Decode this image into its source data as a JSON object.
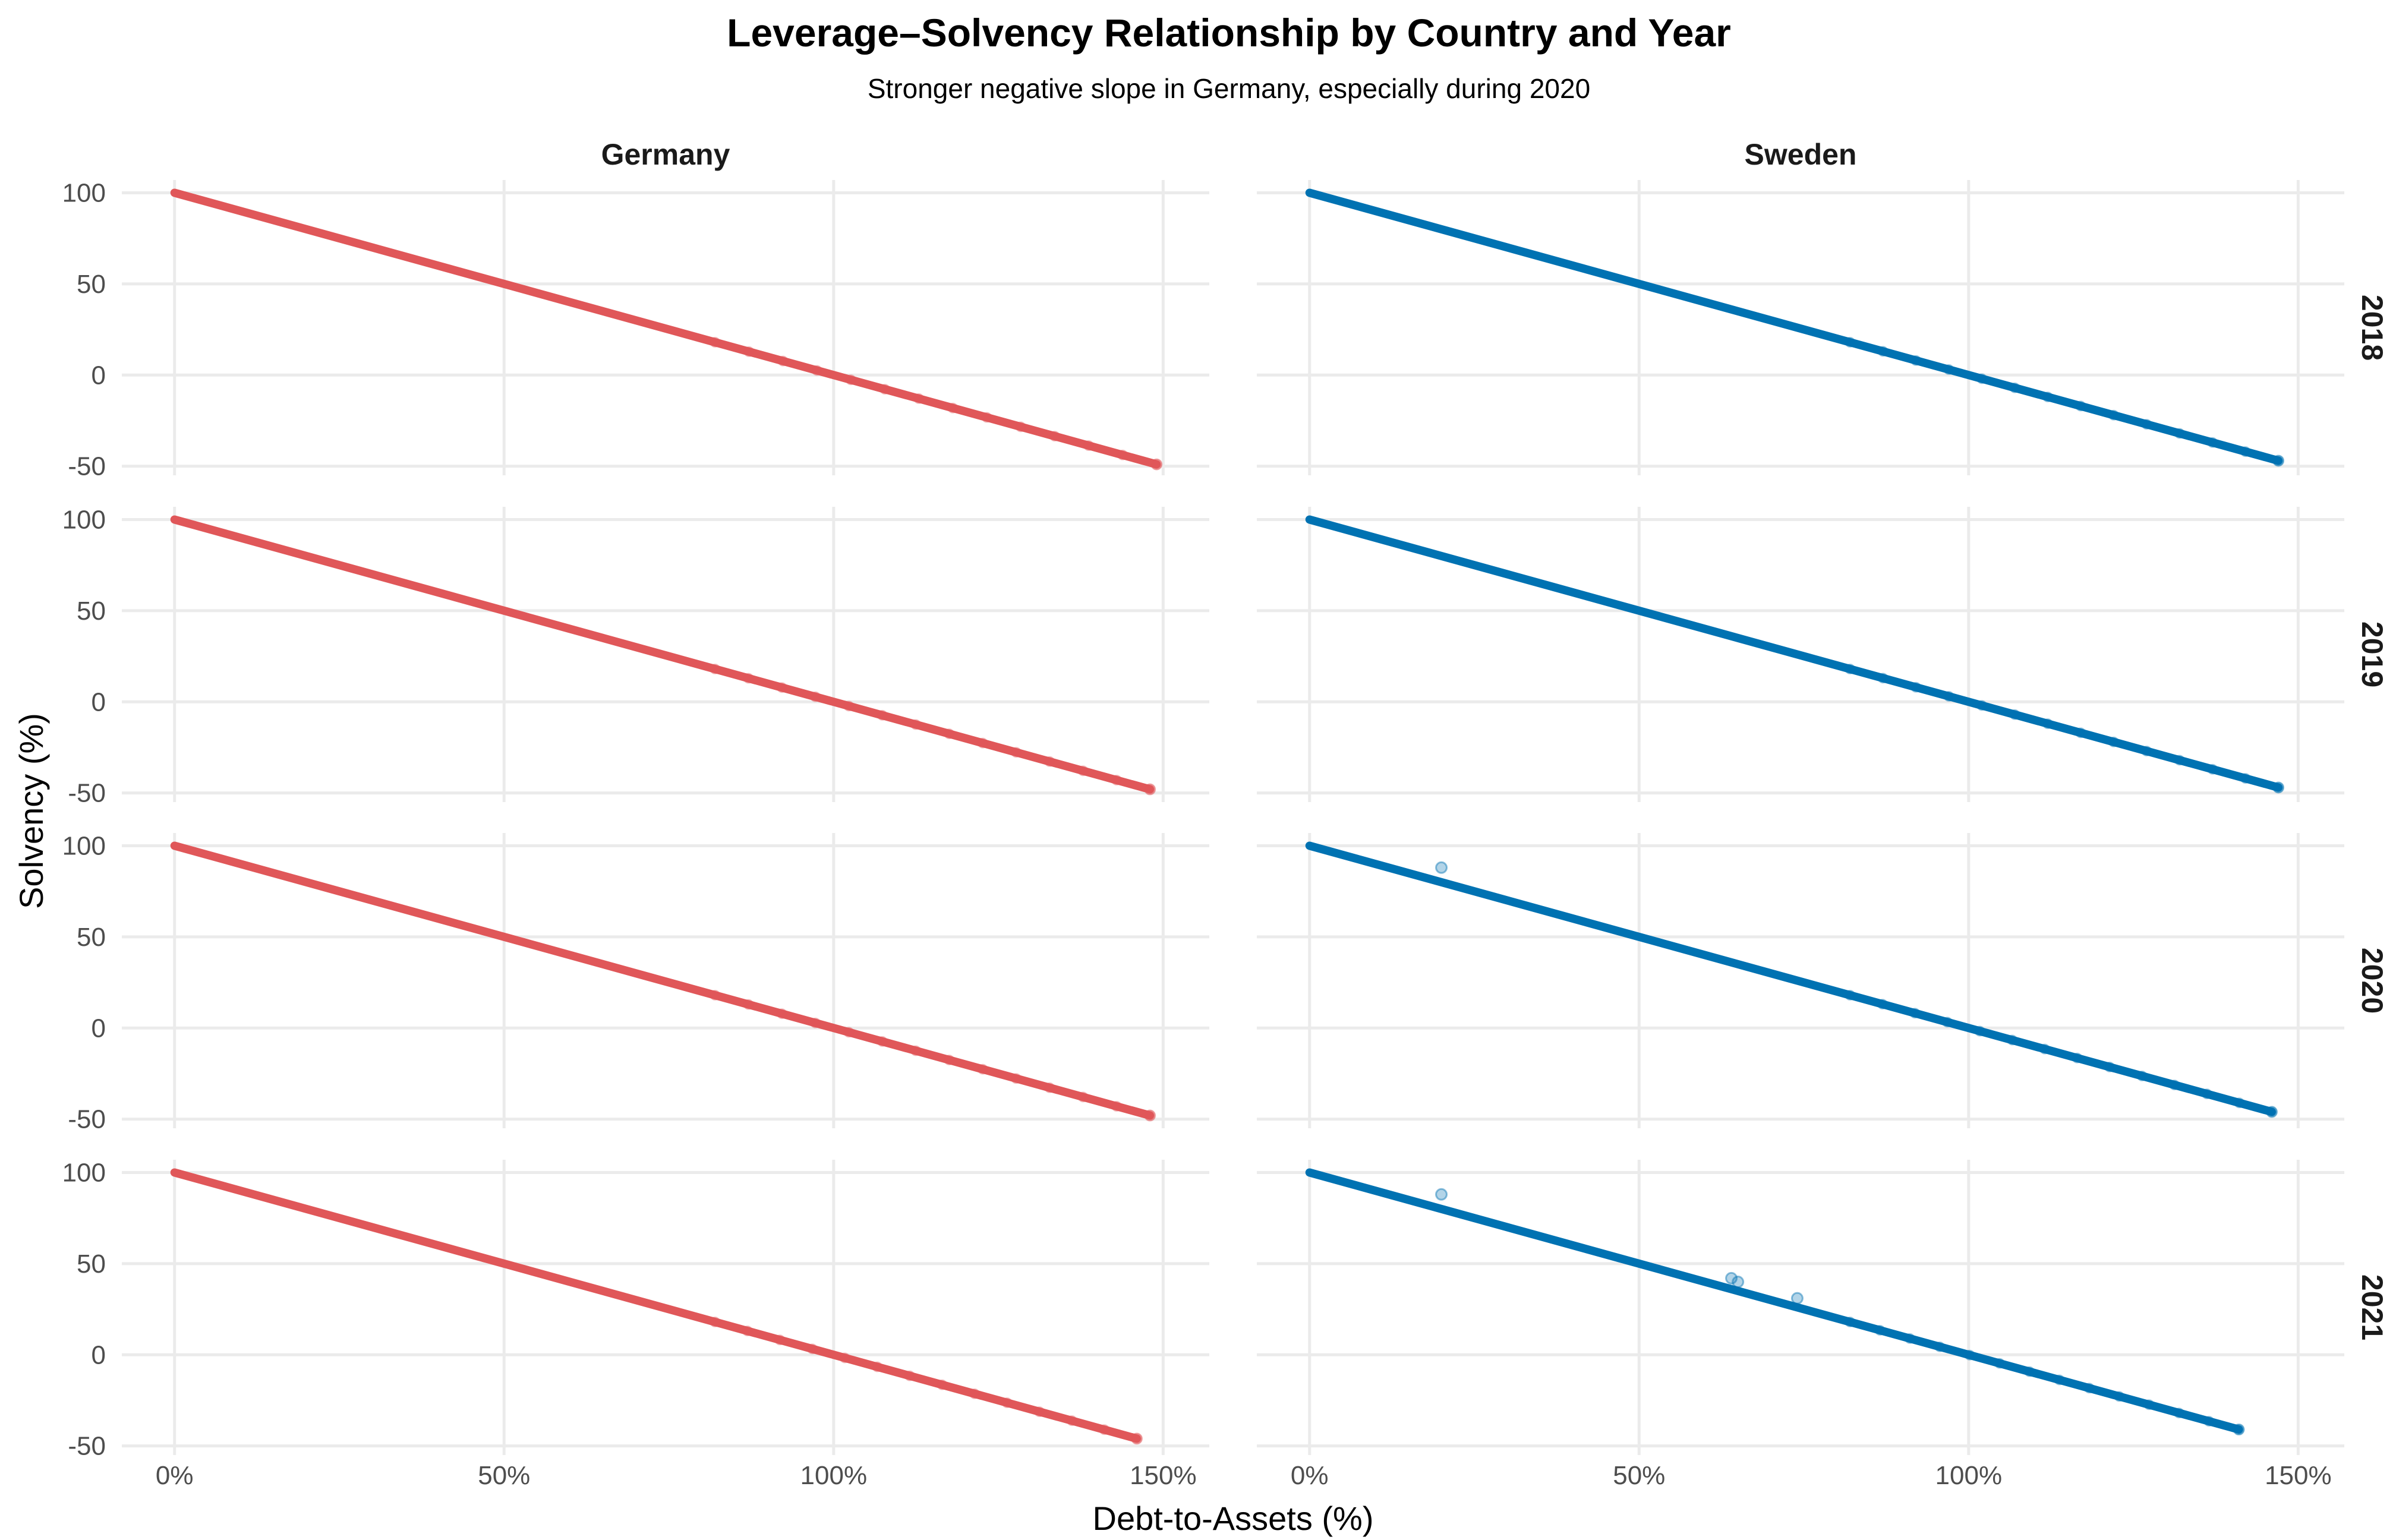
{
  "chart_data": {
    "type": "scatter",
    "title": "Leverage–Solvency Relationship by Country and Year",
    "subtitle": "Stronger negative slope in Germany, especially during 2020",
    "xlabel": "Debt-to-Assets (%)",
    "ylabel": "Solvency (%)",
    "facet_columns": [
      "Germany",
      "Sweden"
    ],
    "facet_rows": [
      "2018",
      "2019",
      "2020",
      "2021"
    ],
    "xlim": [
      -8,
      157
    ],
    "ylim": [
      -55,
      107
    ],
    "x_ticks": [
      0,
      50,
      100,
      150
    ],
    "x_tick_labels": [
      "0%",
      "50%",
      "100%",
      "150%"
    ],
    "y_ticks": [
      100,
      50,
      0,
      -50
    ],
    "y_tick_labels": [
      "100",
      "50",
      "0",
      "-50"
    ],
    "grid": true,
    "legend": "none",
    "colors": {
      "Germany": "#E05759",
      "Sweden": "#0072B2"
    },
    "relationship": "Solvency ≈ 100 − Debt-to-Assets",
    "panels": [
      {
        "country": "Germany",
        "year": "2018",
        "x_range": [
          0,
          149
        ],
        "line": [
          [
            0,
            100
          ],
          [
            149,
            -49
          ]
        ],
        "outliers": []
      },
      {
        "country": "Sweden",
        "year": "2018",
        "x_range": [
          0,
          147
        ],
        "line": [
          [
            0,
            100
          ],
          [
            147,
            -47
          ]
        ],
        "outliers": []
      },
      {
        "country": "Germany",
        "year": "2019",
        "x_range": [
          0,
          148
        ],
        "line": [
          [
            0,
            100
          ],
          [
            148,
            -48
          ]
        ],
        "outliers": []
      },
      {
        "country": "Sweden",
        "year": "2019",
        "x_range": [
          0,
          147
        ],
        "line": [
          [
            0,
            100
          ],
          [
            147,
            -47
          ]
        ],
        "outliers": []
      },
      {
        "country": "Germany",
        "year": "2020",
        "x_range": [
          0,
          148
        ],
        "line": [
          [
            0,
            100
          ],
          [
            148,
            -48
          ]
        ],
        "outliers": []
      },
      {
        "country": "Sweden",
        "year": "2020",
        "x_range": [
          0,
          146
        ],
        "line": [
          [
            0,
            100
          ],
          [
            146,
            -46
          ]
        ],
        "outliers": [
          [
            20,
            88
          ]
        ]
      },
      {
        "country": "Germany",
        "year": "2021",
        "x_range": [
          0,
          146
        ],
        "line": [
          [
            0,
            100
          ],
          [
            146,
            -46
          ]
        ],
        "outliers": []
      },
      {
        "country": "Sweden",
        "year": "2021",
        "x_range": [
          0,
          141
        ],
        "line": [
          [
            0,
            100
          ],
          [
            141,
            -41
          ]
        ],
        "outliers": [
          [
            20,
            88
          ],
          [
            64,
            42
          ],
          [
            65,
            40
          ],
          [
            74,
            31
          ]
        ]
      }
    ]
  }
}
